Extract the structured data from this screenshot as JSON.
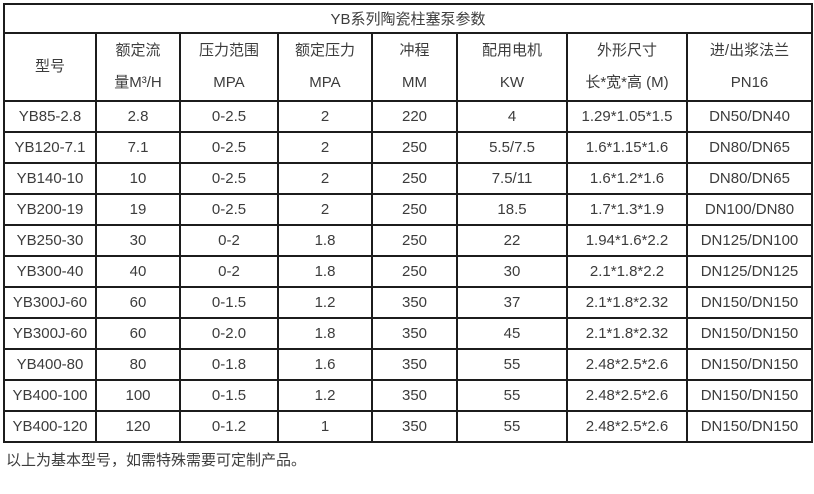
{
  "title": "YB系列陶瓷柱塞泵参数",
  "table": {
    "headers": [
      {
        "line1": "型号",
        "line2": ""
      },
      {
        "line1": "额定流",
        "line2": "量M³/H"
      },
      {
        "line1": "压力范围",
        "line2": "MPA"
      },
      {
        "line1": "额定压力",
        "line2": "MPA"
      },
      {
        "line1": "冲程",
        "line2": "MM"
      },
      {
        "line1": "配用电机",
        "line2": "KW"
      },
      {
        "line1": "外形尺寸",
        "line2": "长*宽*高 (M)"
      },
      {
        "line1": "进/出浆法兰",
        "line2": "PN16"
      }
    ],
    "rows": [
      [
        "YB85-2.8",
        "2.8",
        "0-2.5",
        "2",
        "220",
        "4",
        "1.29*1.05*1.5",
        "DN50/DN40"
      ],
      [
        "YB120-7.1",
        "7.1",
        "0-2.5",
        "2",
        "250",
        "5.5/7.5",
        "1.6*1.15*1.6",
        "DN80/DN65"
      ],
      [
        "YB140-10",
        "10",
        "0-2.5",
        "2",
        "250",
        "7.5/11",
        "1.6*1.2*1.6",
        "DN80/DN65"
      ],
      [
        "YB200-19",
        "19",
        "0-2.5",
        "2",
        "250",
        "18.5",
        "1.7*1.3*1.9",
        "DN100/DN80"
      ],
      [
        "YB250-30",
        "30",
        "0-2",
        "1.8",
        "250",
        "22",
        "1.94*1.6*2.2",
        "DN125/DN100"
      ],
      [
        "YB300-40",
        "40",
        "0-2",
        "1.8",
        "250",
        "30",
        "2.1*1.8*2.2",
        "DN125/DN125"
      ],
      [
        "YB300J-60",
        "60",
        "0-1.5",
        "1.2",
        "350",
        "37",
        "2.1*1.8*2.32",
        "DN150/DN150"
      ],
      [
        "YB300J-60",
        "60",
        "0-2.0",
        "1.8",
        "350",
        "45",
        "2.1*1.8*2.32",
        "DN150/DN150"
      ],
      [
        "YB400-80",
        "80",
        "0-1.8",
        "1.6",
        "350",
        "55",
        "2.48*2.5*2.6",
        "DN150/DN150"
      ],
      [
        "YB400-100",
        "100",
        "0-1.5",
        "1.2",
        "350",
        "55",
        "2.48*2.5*2.6",
        "DN150/DN150"
      ],
      [
        "YB400-120",
        "120",
        "0-1.2",
        "1",
        "350",
        "55",
        "2.48*2.5*2.6",
        "DN150/DN150"
      ]
    ]
  },
  "note": "以上为基本型号，如需特殊需要可定制产品。",
  "colors": {
    "border": "#1c1c1c",
    "text": "#3c3c3c",
    "background": "#ffffff"
  }
}
